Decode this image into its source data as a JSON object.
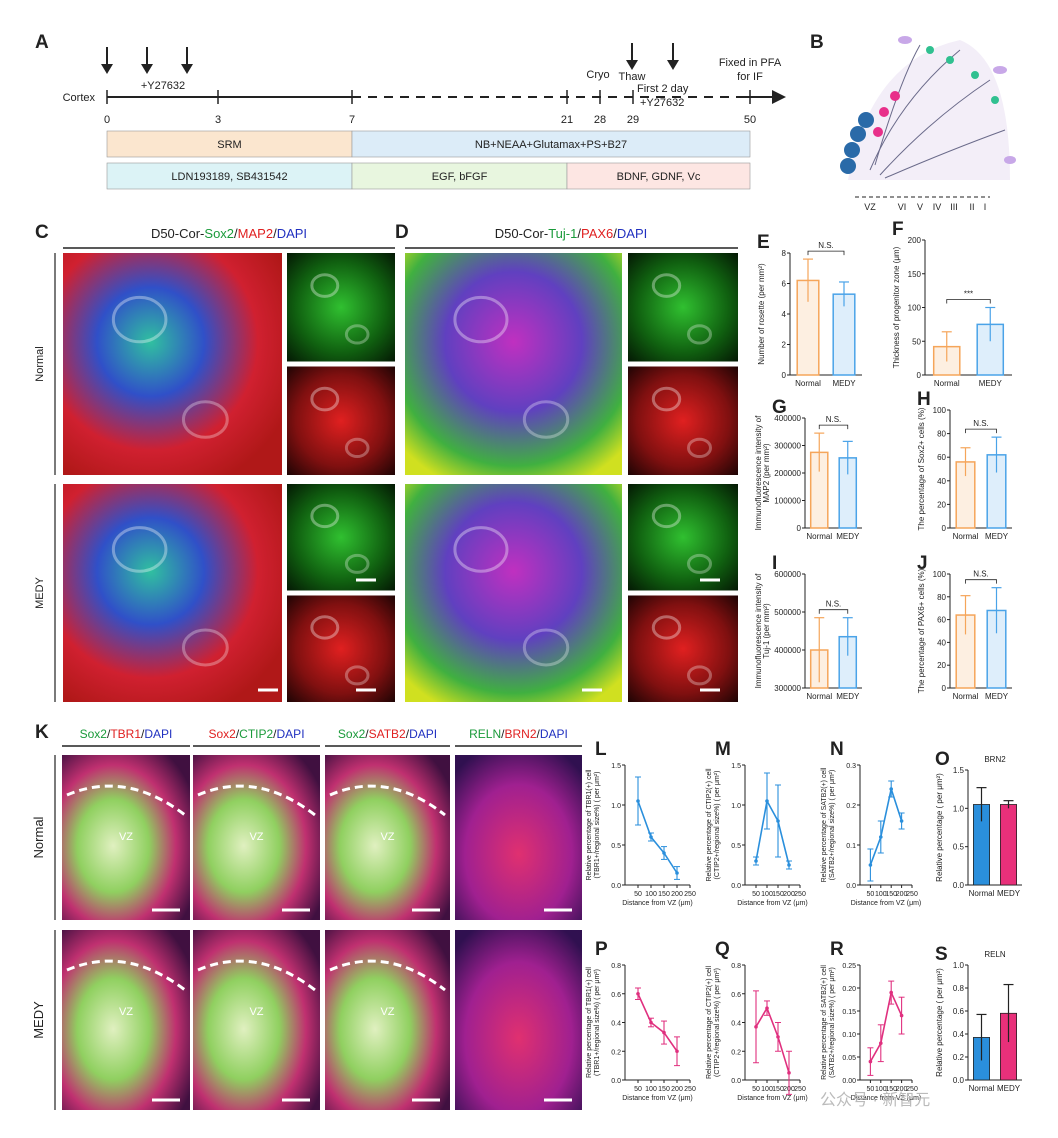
{
  "timeline": {
    "start_label": "Cortex",
    "days": [
      0,
      3,
      7,
      21,
      28,
      29,
      50
    ],
    "notes": [
      "+Y27632",
      "Cryo",
      "Thaw",
      "First 2 day",
      "+Y27632"
    ],
    "end_label": [
      "Fixed in PFA",
      "for IF"
    ],
    "media_row1": [
      "SRM",
      "NB+NEAA+Glutamax+PS+B27"
    ],
    "media_row2": [
      "LDN193189, SB431542",
      "EGF, bFGF",
      "BDNF, GDNF, Vc"
    ]
  },
  "letters": [
    "A",
    "B",
    "C",
    "D",
    "K"
  ],
  "layers": [
    "VZ",
    "VI",
    "V",
    "IV",
    "III",
    "II",
    "I"
  ],
  "panel_c": {
    "title_parts": [
      {
        "text": "D50-Cor-",
        "color": "#222222"
      },
      {
        "text": "Sox2",
        "color": "#1a9a3a"
      },
      {
        "text": "/",
        "color": "#222222"
      },
      {
        "text": "MAP2",
        "color": "#e02020"
      },
      {
        "text": "/",
        "color": "#222222"
      },
      {
        "text": "DAPI",
        "color": "#2030c0"
      }
    ],
    "rows": [
      "Normal",
      "MEDY"
    ]
  },
  "panel_d": {
    "title_parts": [
      {
        "text": "D50-Cor-",
        "color": "#222222"
      },
      {
        "text": "Tuj-1",
        "color": "#1a9a3a"
      },
      {
        "text": "/",
        "color": "#222222"
      },
      {
        "text": "PAX6",
        "color": "#e02020"
      },
      {
        "text": "/",
        "color": "#222222"
      },
      {
        "text": "DAPI",
        "color": "#2030c0"
      }
    ]
  },
  "panel_k": {
    "headings": [
      [
        {
          "text": "Sox2",
          "color": "#1a9a3a"
        },
        {
          "text": "/",
          "color": "#222222"
        },
        {
          "text": "TBR1",
          "color": "#e02020"
        },
        {
          "text": "/",
          "color": "#222222"
        },
        {
          "text": "DAPI",
          "color": "#2030c0"
        }
      ],
      [
        {
          "text": "Sox2",
          "color": "#e02020"
        },
        {
          "text": "/",
          "color": "#222222"
        },
        {
          "text": "CTIP2",
          "color": "#1a9a3a"
        },
        {
          "text": "/",
          "color": "#222222"
        },
        {
          "text": "DAPI",
          "color": "#2030c0"
        }
      ],
      [
        {
          "text": "Sox2",
          "color": "#1a9a3a"
        },
        {
          "text": "/",
          "color": "#222222"
        },
        {
          "text": "SATB2",
          "color": "#e02020"
        },
        {
          "text": "/",
          "color": "#222222"
        },
        {
          "text": "DAPI",
          "color": "#2030c0"
        }
      ],
      [
        {
          "text": "RELN",
          "color": "#1a9a3a"
        },
        {
          "text": "/",
          "color": "#222222"
        },
        {
          "text": "BRN2",
          "color": "#e02020"
        },
        {
          "text": "/",
          "color": "#222222"
        },
        {
          "text": "DAPI",
          "color": "#2030c0"
        }
      ]
    ],
    "rows": [
      "Normal",
      "MEDY"
    ],
    "vz": "VZ"
  },
  "watermark": "公众号 · 新智元",
  "chart_data": [
    {
      "panel": "E",
      "type": "bar",
      "ylabel": [
        "Number of rosette (per mm²)"
      ],
      "categories": [
        "Normal",
        "MEDY"
      ],
      "values": [
        6.2,
        5.3
      ],
      "errors": [
        1.4,
        0.8
      ],
      "colors": [
        "#f5a55a",
        "#4aa3e8"
      ],
      "filled": false,
      "ylim": [
        0,
        8
      ],
      "yticks": [
        0,
        2,
        4,
        6,
        8
      ],
      "significance": "N.S."
    },
    {
      "panel": "F",
      "type": "bar",
      "ylabel": [
        "Thickness of progenitor zone (μm)"
      ],
      "categories": [
        "Normal",
        "MEDY"
      ],
      "values": [
        42,
        75
      ],
      "errors": [
        22,
        25
      ],
      "colors": [
        "#f5a55a",
        "#4aa3e8"
      ],
      "filled": false,
      "ylim": [
        0,
        200
      ],
      "yticks": [
        0,
        50,
        100,
        150,
        200
      ],
      "significance": "***"
    },
    {
      "panel": "G",
      "type": "bar",
      "ylabel": [
        "Immunofluorescence intensity of",
        "MAP2 (per mm²)"
      ],
      "categories": [
        "Normal",
        "MEDY"
      ],
      "values": [
        275000,
        255000
      ],
      "errors": [
        70000,
        60000
      ],
      "colors": [
        "#f5a55a",
        "#4aa3e8"
      ],
      "filled": false,
      "ylim": [
        0,
        400000
      ],
      "yticks": [
        0,
        100000,
        200000,
        300000,
        400000
      ],
      "significance": "N.S."
    },
    {
      "panel": "H",
      "type": "bar",
      "ylabel": [
        "The percentage of Sox2+ cells (%)"
      ],
      "categories": [
        "Normal",
        "MEDY"
      ],
      "values": [
        56,
        62
      ],
      "errors": [
        12,
        15
      ],
      "colors": [
        "#f5a55a",
        "#4aa3e8"
      ],
      "filled": false,
      "ylim": [
        0,
        100
      ],
      "yticks": [
        0,
        20,
        40,
        60,
        80,
        100
      ],
      "significance": "N.S."
    },
    {
      "panel": "I",
      "type": "bar",
      "ylabel": [
        "Immunofluorescence intensity of",
        "Tuj-1 (per mm²)"
      ],
      "categories": [
        "Normal",
        "MEDY"
      ],
      "values": [
        400000,
        435000
      ],
      "errors": [
        85000,
        50000
      ],
      "colors": [
        "#f5a55a",
        "#4aa3e8"
      ],
      "filled": false,
      "ylim": [
        300000,
        600000
      ],
      "yticks": [
        300000,
        400000,
        500000,
        600000
      ],
      "significance": "N.S."
    },
    {
      "panel": "J",
      "type": "bar",
      "ylabel": [
        "The percentage of PAX6+ cells (%)"
      ],
      "categories": [
        "Normal",
        "MEDY"
      ],
      "values": [
        64,
        68
      ],
      "errors": [
        17,
        20
      ],
      "colors": [
        "#f5a55a",
        "#4aa3e8"
      ],
      "filled": false,
      "ylim": [
        0,
        100
      ],
      "yticks": [
        0,
        20,
        40,
        60,
        80,
        100
      ],
      "significance": "N.S."
    },
    {
      "panel": "L",
      "type": "line",
      "ylabel": [
        "Relative percentage of TBR1(+) cell",
        "(TBR1+/regional size%) ( per μm²)"
      ],
      "xlabel": "Distance from VZ (μm)",
      "x": [
        50,
        100,
        150,
        200
      ],
      "values": [
        1.05,
        0.6,
        0.4,
        0.15
      ],
      "errors": [
        0.3,
        0.05,
        0.08,
        0.08
      ],
      "color": "#2a8fdc",
      "xlim": [
        0,
        250
      ],
      "xticks": [
        50,
        100,
        150,
        200,
        250
      ],
      "ylim": [
        0,
        1.5
      ],
      "yticks": [
        {
          "value": 0,
          "label": "0.0"
        },
        0.5,
        {
          "value": 1,
          "label": "1.0"
        },
        1.5
      ]
    },
    {
      "panel": "M",
      "type": "line",
      "ylabel": [
        "Relative percentage of CTIP2(+) cell",
        "(CTIP2+/regional size%) ( per μm²)"
      ],
      "xlabel": "Distance from VZ (μm)",
      "x": [
        50,
        100,
        150,
        200
      ],
      "values": [
        0.3,
        1.05,
        0.8,
        0.25
      ],
      "errors": [
        0.05,
        0.35,
        0.45,
        0.05
      ],
      "color": "#2a8fdc",
      "xlim": [
        0,
        250
      ],
      "xticks": [
        50,
        100,
        150,
        200,
        250
      ],
      "ylim": [
        0,
        1.5
      ],
      "yticks": [
        {
          "value": 0,
          "label": "0.0"
        },
        0.5,
        {
          "value": 1,
          "label": "1.0"
        },
        1.5
      ]
    },
    {
      "panel": "N",
      "type": "line",
      "ylabel": [
        "Relative percentage of SATB2(+) cell",
        "(SATB2+/regional size%) ( per μm²)"
      ],
      "xlabel": "Distance from VZ (μm)",
      "x": [
        50,
        100,
        150,
        200
      ],
      "values": [
        0.05,
        0.12,
        0.24,
        0.16
      ],
      "errors": [
        0.04,
        0.04,
        0.02,
        0.02
      ],
      "color": "#2a8fdc",
      "xlim": [
        0,
        250
      ],
      "xticks": [
        50,
        100,
        150,
        200,
        250
      ],
      "ylim": [
        0,
        0.3
      ],
      "yticks": [
        {
          "value": 0,
          "label": "0.0"
        },
        0.1,
        0.2,
        0.3
      ]
    },
    {
      "panel": "O",
      "type": "bar",
      "title": "BRN2",
      "ylabel": [
        "Relative percentage ( per μm²)"
      ],
      "categories": [
        "Normal",
        "MEDY"
      ],
      "values": [
        1.05,
        1.05
      ],
      "errors": [
        0.22,
        0.05
      ],
      "colors": [
        "#2a8fdc",
        "#e8307a"
      ],
      "filled": true,
      "ylim": [
        0,
        1.5
      ],
      "yticks": [
        {
          "value": 0,
          "label": "0.0"
        },
        0.5,
        {
          "value": 1,
          "label": "1.0"
        },
        1.5
      ]
    },
    {
      "panel": "P",
      "type": "line",
      "ylabel": [
        "Relative percentage of TBR1(+) cell",
        "(TBR1+/regional size%) ( per μm²)"
      ],
      "xlabel": "Distance from VZ (μm)",
      "x": [
        50,
        100,
        150,
        200
      ],
      "values": [
        0.6,
        0.4,
        0.33,
        0.2
      ],
      "errors": [
        0.04,
        0.03,
        0.08,
        0.1
      ],
      "color": "#e0307f",
      "xlim": [
        0,
        250
      ],
      "xticks": [
        50,
        100,
        150,
        200,
        250
      ],
      "ylim": [
        0,
        0.8
      ],
      "yticks": [
        {
          "value": 0,
          "label": "0.0"
        },
        0.2,
        0.4,
        0.6,
        0.8
      ]
    },
    {
      "panel": "Q",
      "type": "line",
      "ylabel": [
        "Relative percentage of CTIP2(+) cell",
        "(CTIP2+/regional size%) ( per μm²)"
      ],
      "xlabel": "Distance from VZ (μm)",
      "x": [
        50,
        100,
        150,
        200
      ],
      "values": [
        0.37,
        0.5,
        0.3,
        0.05
      ],
      "errors": [
        0.25,
        0.05,
        0.1,
        0.15
      ],
      "color": "#e0307f",
      "xlim": [
        0,
        250
      ],
      "xticks": [
        50,
        100,
        150,
        200,
        250
      ],
      "ylim": [
        0,
        0.8
      ],
      "yticks": [
        {
          "value": 0,
          "label": "0.0"
        },
        0.2,
        0.4,
        0.6,
        0.8
      ]
    },
    {
      "panel": "R",
      "type": "line",
      "ylabel": [
        "Relative percentage of SATB2(+) cell",
        "(SATB2+/regional size%) ( per μm²)"
      ],
      "xlabel": "Distance from VZ (μm)",
      "x": [
        50,
        100,
        150,
        200
      ],
      "values": [
        0.04,
        0.08,
        0.19,
        0.14
      ],
      "errors": [
        0.03,
        0.04,
        0.025,
        0.04
      ],
      "color": "#e0307f",
      "xlim": [
        0,
        250
      ],
      "xticks": [
        50,
        100,
        150,
        200,
        250
      ],
      "ylim": [
        0,
        0.25
      ],
      "yticks": [
        {
          "value": 0,
          "label": "0.00"
        },
        0.05,
        {
          "value": 0.1,
          "label": "0.10"
        },
        0.15,
        {
          "value": 0.2,
          "label": "0.20"
        },
        0.25
      ]
    },
    {
      "panel": "S",
      "type": "bar",
      "title": "RELN",
      "ylabel": [
        "Relative percentage ( per μm²)"
      ],
      "categories": [
        "Normal",
        "MEDY"
      ],
      "values": [
        0.37,
        0.58
      ],
      "errors": [
        0.2,
        0.25
      ],
      "colors": [
        "#2a8fdc",
        "#e8307a"
      ],
      "filled": true,
      "ylim": [
        0,
        1
      ],
      "yticks": [
        {
          "value": 0,
          "label": "0.0"
        },
        0.2,
        0.4,
        0.6,
        0.8,
        {
          "value": 1,
          "label": "1.0"
        }
      ]
    }
  ]
}
